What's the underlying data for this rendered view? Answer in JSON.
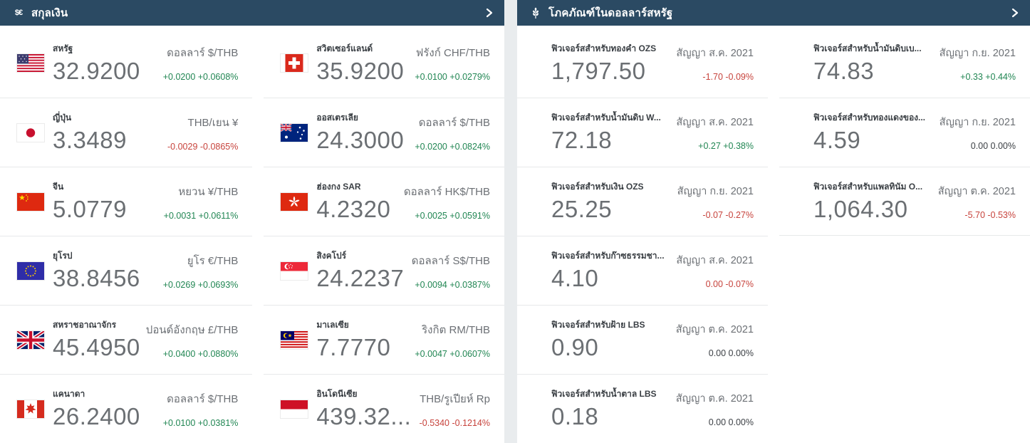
{
  "theme": {
    "header_bg": "#2b4a63",
    "panel_bg": "#ffffff",
    "page_bg": "#e9ecee",
    "value_color": "#6b6f73",
    "up_color": "#218653",
    "down_color": "#c7433c",
    "flat_color": "#3c4045"
  },
  "currencies_panel": {
    "title": "สกุลเงิน",
    "icon": "dollar-euro-icon",
    "icon_glyph": "$€",
    "chevron": "›",
    "columns": [
      [
        {
          "country": "สหรัฐ",
          "flag": "us",
          "value": "32.9200",
          "pair": "ดอลลาร์ $/THB",
          "change": "+0.0200 +0.0608%",
          "dir": "up"
        },
        {
          "country": "ญี่ปุ่น",
          "flag": "jp",
          "value": "3.3489",
          "pair": "THB/เยน ¥",
          "change": "-0.0029 -0.0865%",
          "dir": "down"
        },
        {
          "country": "จีน",
          "flag": "cn",
          "value": "5.0779",
          "pair": "หยวน ¥/THB",
          "change": "+0.0031 +0.0611%",
          "dir": "up"
        },
        {
          "country": "ยุโรป",
          "flag": "eu",
          "value": "38.8456",
          "pair": "ยูโร €/THB",
          "change": "+0.0269 +0.0693%",
          "dir": "up"
        },
        {
          "country": "สหราชอาณาจักร",
          "flag": "gb",
          "value": "45.4950",
          "pair": "ปอนด์อังกฤษ £/THB",
          "change": "+0.0400 +0.0880%",
          "dir": "up"
        },
        {
          "country": "แคนาดา",
          "flag": "ca",
          "value": "26.2400",
          "pair": "ดอลลาร์ $/THB",
          "change": "+0.0100 +0.0381%",
          "dir": "up"
        }
      ],
      [
        {
          "country": "สวิตเซอร์แลนด์",
          "flag": "ch",
          "value": "35.9200",
          "pair": "ฟรังก์ CHF/THB",
          "change": "+0.0100 +0.0279%",
          "dir": "up"
        },
        {
          "country": "ออสเตรเลีย",
          "flag": "au",
          "value": "24.3000",
          "pair": "ดอลลาร์ $/THB",
          "change": "+0.0200 +0.0824%",
          "dir": "up"
        },
        {
          "country": "ฮ่องกง SAR",
          "flag": "hk",
          "value": "4.2320",
          "pair": "ดอลลาร์ HK$/THB",
          "change": "+0.0025 +0.0591%",
          "dir": "up"
        },
        {
          "country": "สิงคโปร์",
          "flag": "sg",
          "value": "24.2237",
          "pair": "ดอลลาร์ S$/THB",
          "change": "+0.0094 +0.0387%",
          "dir": "up"
        },
        {
          "country": "มาเลเซีย",
          "flag": "my",
          "value": "7.7770",
          "pair": "ริงกิต RM/THB",
          "change": "+0.0047 +0.0607%",
          "dir": "up"
        },
        {
          "country": "อินโดนีเซีย",
          "flag": "id",
          "value": "439.32...",
          "pair": "THB/รูเปียห์ Rp",
          "change": "-0.5340 -0.1214%",
          "dir": "down"
        }
      ]
    ]
  },
  "commodities_panel": {
    "title": "โภคภัณฑ์ในดอลลาร์สหรัฐ",
    "icon": "wheat-icon",
    "chevron": "›",
    "columns": [
      [
        {
          "name": "ฟิวเจอร์สสำหรับทองคำ OZS",
          "contract": "สัญญา ส.ค. 2021",
          "value": "1,797.50",
          "change": "-1.70 -0.09%",
          "dir": "down"
        },
        {
          "name": "ฟิวเจอร์สสำหรับน้ำมันดิบ W...",
          "contract": "สัญญา ส.ค. 2021",
          "value": "72.18",
          "change": "+0.27 +0.38%",
          "dir": "up"
        },
        {
          "name": "ฟิวเจอร์สสำหรับเงิน OZS",
          "contract": "สัญญา ก.ย. 2021",
          "value": "25.25",
          "change": "-0.07 -0.27%",
          "dir": "down"
        },
        {
          "name": "ฟิวเจอร์สสำหรับก๊าซธรรมชา...",
          "contract": "สัญญา ส.ค. 2021",
          "value": "4.10",
          "change": "0.00 -0.07%",
          "dir": "down"
        },
        {
          "name": "ฟิวเจอร์สสำหรับฝ้าย LBS",
          "contract": "สัญญา ต.ค. 2021",
          "value": "0.90",
          "change": "0.00 0.00%",
          "dir": "flat"
        },
        {
          "name": "ฟิวเจอร์สสำหรับน้ำตาล LBS",
          "contract": "สัญญา ต.ค. 2021",
          "value": "0.18",
          "change": "0.00 0.00%",
          "dir": "flat"
        }
      ],
      [
        {
          "name": "ฟิวเจอร์สสำหรับน้ำมันดิบเบ...",
          "contract": "สัญญา ก.ย. 2021",
          "value": "74.83",
          "change": "+0.33 +0.44%",
          "dir": "up"
        },
        {
          "name": "ฟิวเจอร์สสำหรับทองแดงของ...",
          "contract": "สัญญา ก.ย. 2021",
          "value": "4.59",
          "change": "0.00 0.00%",
          "dir": "flat"
        },
        {
          "name": "ฟิวเจอร์สสำหรับแพลทินัม O...",
          "contract": "สัญญา ต.ค. 2021",
          "value": "1,064.30",
          "change": "-5.70 -0.53%",
          "dir": "down"
        }
      ]
    ]
  }
}
